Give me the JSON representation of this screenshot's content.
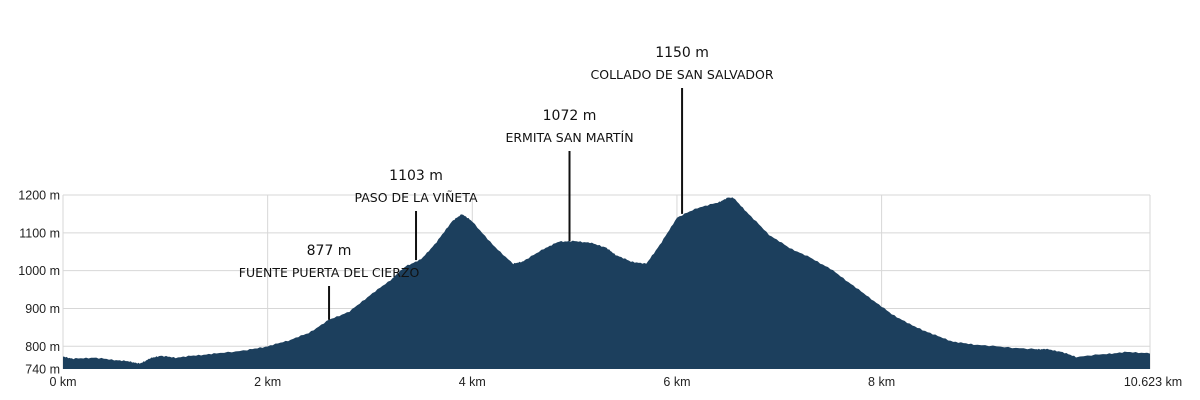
{
  "chart_data": {
    "type": "area",
    "title": "",
    "xlabel": "",
    "ylabel": "",
    "x_unit": "km",
    "y_unit": "m",
    "xlim": [
      0,
      10.623
    ],
    "ylim": [
      740,
      1200
    ],
    "grid": true,
    "fill_color": "#1c3f5d",
    "x_ticks": [
      {
        "value": 0,
        "label": "0 km"
      },
      {
        "value": 2,
        "label": "2 km"
      },
      {
        "value": 4,
        "label": "4 km"
      },
      {
        "value": 6,
        "label": "6 km"
      },
      {
        "value": 8,
        "label": "8 km"
      },
      {
        "value": 10.623,
        "label": "10.623 km"
      }
    ],
    "y_ticks": [
      {
        "value": 740,
        "label": "740 m"
      },
      {
        "value": 800,
        "label": "800 m"
      },
      {
        "value": 900,
        "label": "900 m"
      },
      {
        "value": 1000,
        "label": "1000 m"
      },
      {
        "value": 1100,
        "label": "1100 m"
      },
      {
        "value": 1200,
        "label": "1200 m"
      }
    ],
    "profile": [
      [
        0.0,
        773
      ],
      [
        0.1,
        767
      ],
      [
        0.3,
        770
      ],
      [
        0.5,
        764
      ],
      [
        0.65,
        760
      ],
      [
        0.75,
        754
      ],
      [
        0.85,
        768
      ],
      [
        0.95,
        775
      ],
      [
        1.1,
        770
      ],
      [
        1.3,
        776
      ],
      [
        1.5,
        781
      ],
      [
        1.8,
        790
      ],
      [
        2.0,
        800
      ],
      [
        2.2,
        815
      ],
      [
        2.4,
        835
      ],
      [
        2.6,
        870
      ],
      [
        2.8,
        892
      ],
      [
        3.0,
        935
      ],
      [
        3.2,
        975
      ],
      [
        3.35,
        1012
      ],
      [
        3.5,
        1030
      ],
      [
        3.65,
        1075
      ],
      [
        3.8,
        1130
      ],
      [
        3.9,
        1150
      ],
      [
        4.0,
        1130
      ],
      [
        4.2,
        1068
      ],
      [
        4.4,
        1018
      ],
      [
        4.5,
        1025
      ],
      [
        4.7,
        1058
      ],
      [
        4.85,
        1077
      ],
      [
        5.0,
        1078
      ],
      [
        5.15,
        1074
      ],
      [
        5.3,
        1062
      ],
      [
        5.4,
        1042
      ],
      [
        5.55,
        1024
      ],
      [
        5.7,
        1018
      ],
      [
        5.85,
        1075
      ],
      [
        6.0,
        1140
      ],
      [
        6.2,
        1166
      ],
      [
        6.4,
        1180
      ],
      [
        6.5,
        1193
      ],
      [
        6.55,
        1193
      ],
      [
        6.7,
        1150
      ],
      [
        6.9,
        1095
      ],
      [
        7.1,
        1060
      ],
      [
        7.3,
        1035
      ],
      [
        7.5,
        1005
      ],
      [
        7.7,
        965
      ],
      [
        7.9,
        925
      ],
      [
        8.1,
        885
      ],
      [
        8.3,
        855
      ],
      [
        8.5,
        832
      ],
      [
        8.7,
        812
      ],
      [
        8.9,
        805
      ],
      [
        9.2,
        798
      ],
      [
        9.5,
        792
      ],
      [
        9.6,
        793
      ],
      [
        9.75,
        786
      ],
      [
        9.9,
        772
      ],
      [
        10.2,
        780
      ],
      [
        10.4,
        785
      ],
      [
        10.623,
        782
      ]
    ],
    "annotations": [
      {
        "x": 2.6,
        "y": 870,
        "elevation": "877 m",
        "name": "FUENTE PUERTA DEL CIERZO"
      },
      {
        "x": 3.45,
        "y": 1028,
        "elevation": "1103 m",
        "name": "PASO DE LA VIÑETA"
      },
      {
        "x": 4.95,
        "y": 1078,
        "elevation": "1072 m",
        "name": "ERMITA SAN MARTÍN"
      },
      {
        "x": 6.05,
        "y": 1150,
        "elevation": "1150 m",
        "name": "COLLADO DE SAN SALVADOR"
      }
    ]
  }
}
